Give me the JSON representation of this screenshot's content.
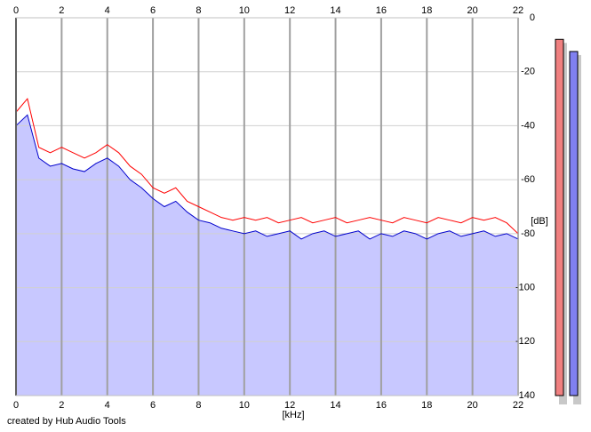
{
  "chart_data": {
    "type": "line",
    "x_label": "[kHz]",
    "y_label": "[dB]",
    "credit": "created by Hub Audio Tools",
    "x": [
      0,
      0.5,
      1,
      1.5,
      2,
      2.5,
      3,
      3.5,
      4,
      4.5,
      5,
      5.5,
      6,
      6.5,
      7,
      7.5,
      8,
      8.5,
      9,
      9.5,
      10,
      10.5,
      11,
      11.5,
      12,
      12.5,
      13,
      13.5,
      14,
      14.5,
      15,
      15.5,
      16,
      16.5,
      17,
      17.5,
      18,
      18.5,
      19,
      19.5,
      20,
      20.5,
      21,
      21.5,
      22
    ],
    "series": [
      {
        "color": "#ff0000",
        "values": [
          -35,
          -30,
          -48,
          -50,
          -48,
          -50,
          -52,
          -50,
          -47,
          -50,
          -55,
          -58,
          -63,
          -65,
          -63,
          -68,
          -70,
          -72,
          -74,
          -75,
          -74,
          -75,
          -74,
          -76,
          -75,
          -74,
          -76,
          -75,
          -74,
          -76,
          -75,
          -74,
          -75,
          -76,
          -74,
          -75,
          -76,
          -74,
          -75,
          -76,
          -74,
          -75,
          -74,
          -76,
          -80
        ]
      },
      {
        "color": "#0000cc",
        "values": [
          -40,
          -36,
          -52,
          -55,
          -54,
          -56,
          -57,
          -54,
          -52,
          -55,
          -60,
          -63,
          -67,
          -70,
          -68,
          -72,
          -75,
          -76,
          -78,
          -79,
          -80,
          -79,
          -81,
          -80,
          -79,
          -82,
          -80,
          -79,
          -81,
          -80,
          -79,
          -82,
          -80,
          -81,
          -79,
          -80,
          -82,
          -80,
          -79,
          -81,
          -80,
          -79,
          -81,
          -80,
          -82
        ]
      }
    ],
    "fill_color": "#c8c8ff",
    "xlim": [
      0,
      22
    ],
    "xticks": [
      0,
      2,
      4,
      6,
      8,
      10,
      12,
      14,
      16,
      18,
      20,
      22
    ],
    "ylim": [
      -140,
      0
    ],
    "yticks": [
      0,
      -20,
      -40,
      -60,
      -80,
      -100,
      -120,
      -140
    ],
    "grid": true,
    "levels": [
      {
        "color": "#f08080",
        "value": -8
      },
      {
        "color": "#8080f0",
        "value": -12.5
      }
    ]
  }
}
